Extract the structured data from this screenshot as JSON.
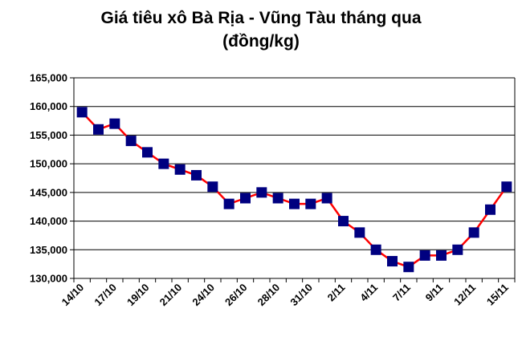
{
  "chart_data": {
    "type": "line",
    "title": "Giá tiêu xô Bà Rịa - Vũng Tàu tháng qua",
    "subtitle": "(đồng/kg)",
    "xlabel": "",
    "ylabel": "",
    "ylim": [
      130000,
      165000
    ],
    "y_ticks": [
      "130,000",
      "135,000",
      "140,000",
      "145,000",
      "150,000",
      "155,000",
      "160,000",
      "165,000"
    ],
    "x_tick_labels": [
      {
        "index": 0,
        "label": "14/10"
      },
      {
        "index": 2,
        "label": "17/10"
      },
      {
        "index": 4,
        "label": "19/10"
      },
      {
        "index": 6,
        "label": "21/10"
      },
      {
        "index": 8,
        "label": "24/10"
      },
      {
        "index": 10,
        "label": "26/10"
      },
      {
        "index": 12,
        "label": "28/10"
      },
      {
        "index": 14,
        "label": "31/10"
      },
      {
        "index": 16,
        "label": "2/11"
      },
      {
        "index": 18,
        "label": "4/11"
      },
      {
        "index": 20,
        "label": "7/11"
      },
      {
        "index": 22,
        "label": "9/11"
      },
      {
        "index": 24,
        "label": "12/11"
      },
      {
        "index": 26,
        "label": "15/11"
      }
    ],
    "grid": true,
    "line_color": "#ff0000",
    "marker_color": "#000080",
    "values": [
      159000,
      156000,
      157000,
      154000,
      152000,
      150000,
      149000,
      148000,
      146000,
      143000,
      144000,
      145000,
      144000,
      143000,
      143000,
      144000,
      140000,
      138000,
      135000,
      133000,
      132000,
      134000,
      134000,
      135000,
      138000,
      142000,
      146000
    ]
  }
}
